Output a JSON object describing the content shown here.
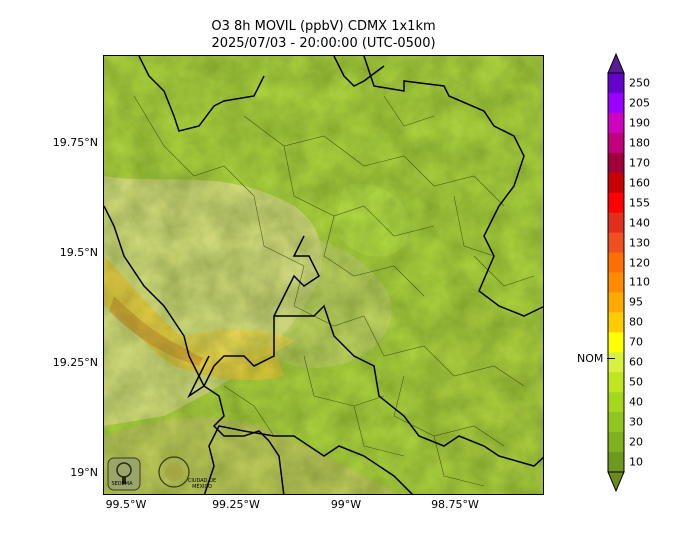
{
  "title_line1": "O3 8h MOVIL (ppbV) CDMX 1x1km",
  "title_line2": "2025/07/03 - 20:00:00 (UTC-0500)",
  "lat_labels": [
    "19.75°N",
    "19.5°N",
    "19.25°N",
    "19°N"
  ],
  "lon_labels": [
    "99.5°W",
    "99.25°W",
    "99°W",
    "98.75°W"
  ],
  "colorbar": {
    "levels": [
      "10",
      "20",
      "30",
      "40",
      "50",
      "60",
      "70",
      "80",
      "95",
      "110",
      "120",
      "130",
      "140",
      "155",
      "160",
      "170",
      "180",
      "190",
      "205",
      "250"
    ],
    "colors": [
      "#6b9a1e",
      "#7fb01e",
      "#90c41e",
      "#a3d81f",
      "#bde61f",
      "#d9f03c",
      "#ffff00",
      "#ffcc00",
      "#ffaa00",
      "#ff8c00",
      "#ff7000",
      "#f05020",
      "#e0301a",
      "#ff0000",
      "#c80000",
      "#a0003c",
      "#c0007f",
      "#d000c0",
      "#9900ff",
      "#6600cc"
    ],
    "reference_label": "NOM"
  },
  "logos": [
    "SEDEMA",
    "CIUDAD DE MÉXICO"
  ]
}
